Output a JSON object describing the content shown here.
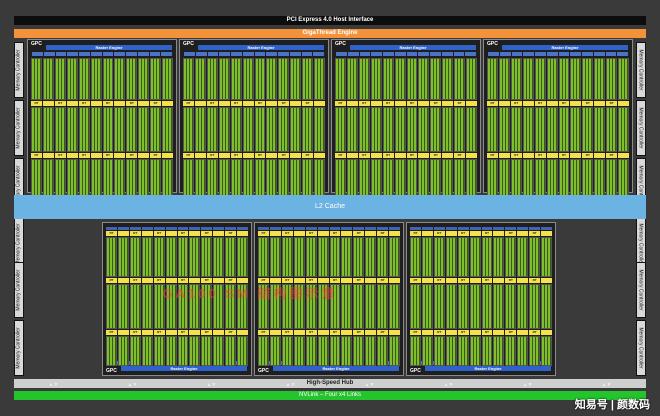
{
  "top": {
    "pcie_label": "PCI Express 4.0 Host Interface",
    "giga_label": "GigaThread Engine"
  },
  "middle": {
    "l2_label": "L2 Cache"
  },
  "bottom": {
    "hub_label": "High-Speed Hub",
    "nvlink_label": "NVLink – Four x4 Links"
  },
  "memory_controller_label": "Memory Controller",
  "gpc_label": "GPC",
  "raster_label": "Raster Engine",
  "rt_label": "RT CORE",
  "watermark_label": "GA100 SM 结构图示意",
  "site_label": "知易号 | 颜数码",
  "colors": {
    "background": "#3a3a3a",
    "giga": "#f3923a",
    "l2": "#6bb3e3",
    "nvlink": "#23c42c",
    "raster": "#2f63c9",
    "sm_green": "#7fbf2a",
    "rt_yellow": "#f3e24a"
  }
}
